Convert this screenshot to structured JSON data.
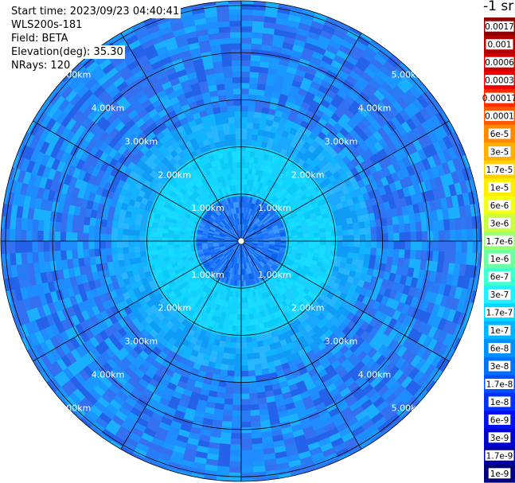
{
  "header": {
    "start_time": "Start time: 2023/09/23 04:40:41",
    "instrument": "WLS200s-181",
    "field": "Field: BETA",
    "elevation": "Elevation(deg): 35.30",
    "nrays": "NRays: 120"
  },
  "colorbar": {
    "unit_label": "-1 sr",
    "ticks": [
      "0.0017",
      "0.001",
      "0.0006",
      "0.0003",
      "0.00017",
      "0.0001",
      "6e-5",
      "3e-5",
      "1.7e-5",
      "1e-5",
      "6e-6",
      "3e-6",
      "1.7e-6",
      "1e-6",
      "6e-7",
      "3e-7",
      "1.7e-7",
      "1e-7",
      "6e-8",
      "3e-8",
      "1.7e-8",
      "1e-8",
      "6e-9",
      "3e-9",
      "1.7e-9",
      "1e-9"
    ],
    "colors": [
      "#8b0000",
      "#b00000",
      "#d10000",
      "#f00000",
      "#ff2a00",
      "#ff5a00",
      "#ff8a00",
      "#ffb000",
      "#ffd000",
      "#ffee00",
      "#f2ff18",
      "#c8ff40",
      "#98ff70",
      "#70ffa0",
      "#40ffd0",
      "#20f0ff",
      "#00d8ff",
      "#00b4ff",
      "#0090ff",
      "#0070ff",
      "#0050ff",
      "#0030ff",
      "#0010f0",
      "#0000d0",
      "#0000a8",
      "#00007a"
    ]
  },
  "chart_data": {
    "type": "ppi",
    "range_unit": "km",
    "range_rings_km": [
      1,
      2,
      3,
      4,
      5
    ],
    "ring_labels": [
      "1.00km",
      "2.00km",
      "3.00km",
      "4.00km",
      "5.00km"
    ],
    "max_range_km": 5.1,
    "azimuth_spokes_deg": [
      0,
      30,
      60,
      90,
      120,
      150,
      180,
      210,
      240,
      270,
      300,
      330
    ],
    "n_rays": 120,
    "field": "BETA",
    "value_bands": [
      {
        "range_km": [
          0,
          0.9
        ],
        "level": "3e-8"
      },
      {
        "range_km": [
          0.9,
          2.1
        ],
        "level": "1.7e-7"
      },
      {
        "range_km": [
          2.1,
          2.8
        ],
        "level": "1e-7"
      },
      {
        "range_km": [
          2.8,
          5.1
        ],
        "level": "6e-8"
      }
    ]
  }
}
